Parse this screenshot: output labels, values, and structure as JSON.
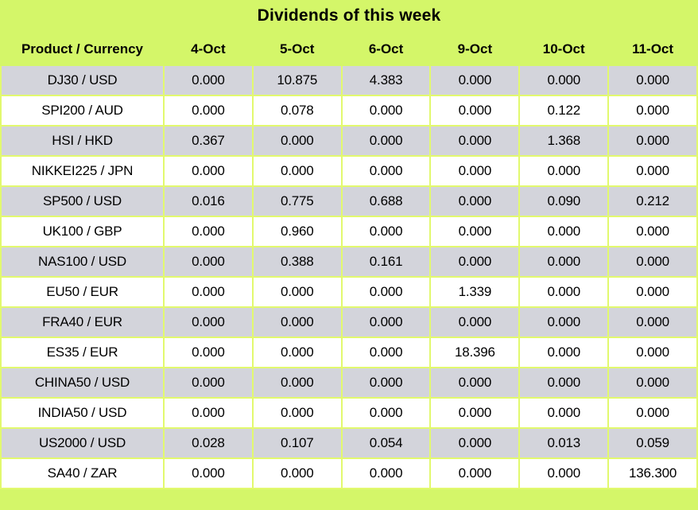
{
  "title": "Dividends of this week",
  "table": {
    "header": [
      "Product / Currency",
      "4-Oct",
      "5-Oct",
      "6-Oct",
      "9-Oct",
      "10-Oct",
      "11-Oct"
    ],
    "rows": [
      {
        "product": "DJ30 / USD",
        "values": [
          "0.000",
          "10.875",
          "4.383",
          "0.000",
          "0.000",
          "0.000"
        ]
      },
      {
        "product": "SPI200 / AUD",
        "values": [
          "0.000",
          "0.078",
          "0.000",
          "0.000",
          "0.122",
          "0.000"
        ]
      },
      {
        "product": "HSI / HKD",
        "values": [
          "0.367",
          "0.000",
          "0.000",
          "0.000",
          "1.368",
          "0.000"
        ]
      },
      {
        "product": "NIKKEI225 / JPN",
        "values": [
          "0.000",
          "0.000",
          "0.000",
          "0.000",
          "0.000",
          "0.000"
        ]
      },
      {
        "product": "SP500 / USD",
        "values": [
          "0.016",
          "0.775",
          "0.688",
          "0.000",
          "0.090",
          "0.212"
        ]
      },
      {
        "product": "UK100 / GBP",
        "values": [
          "0.000",
          "0.960",
          "0.000",
          "0.000",
          "0.000",
          "0.000"
        ]
      },
      {
        "product": "NAS100 / USD",
        "values": [
          "0.000",
          "0.388",
          "0.161",
          "0.000",
          "0.000",
          "0.000"
        ]
      },
      {
        "product": "EU50 / EUR",
        "values": [
          "0.000",
          "0.000",
          "0.000",
          "1.339",
          "0.000",
          "0.000"
        ]
      },
      {
        "product": "FRA40 / EUR",
        "values": [
          "0.000",
          "0.000",
          "0.000",
          "0.000",
          "0.000",
          "0.000"
        ]
      },
      {
        "product": "ES35 / EUR",
        "values": [
          "0.000",
          "0.000",
          "0.000",
          "18.396",
          "0.000",
          "0.000"
        ]
      },
      {
        "product": "CHINA50 / USD",
        "values": [
          "0.000",
          "0.000",
          "0.000",
          "0.000",
          "0.000",
          "0.000"
        ]
      },
      {
        "product": "INDIA50 / USD",
        "values": [
          "0.000",
          "0.000",
          "0.000",
          "0.000",
          "0.000",
          "0.000"
        ]
      },
      {
        "product": "US2000 / USD",
        "values": [
          "0.028",
          "0.107",
          "0.054",
          "0.000",
          "0.013",
          "0.059"
        ]
      },
      {
        "product": "SA40 / ZAR",
        "values": [
          "0.000",
          "0.000",
          "0.000",
          "0.000",
          "0.000",
          "136.300"
        ]
      }
    ]
  },
  "colors": {
    "green_bg": "#D4F669",
    "grid": "#E2F96E",
    "row_gray": "#D3D4DB",
    "row_white": "#FFFFFF",
    "text": "#000000"
  }
}
